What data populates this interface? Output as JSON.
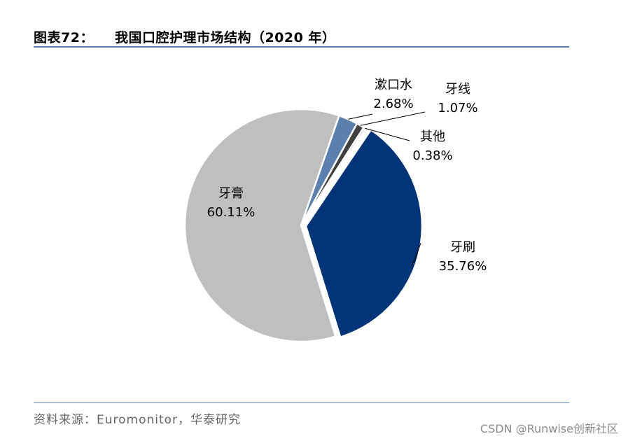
{
  "header": {
    "figure_no": "图表72：",
    "title": "我国口腔护理市场结构（2020 年）"
  },
  "footer": {
    "source": "资料来源：Euromonitor，华泰研究",
    "watermark": "CSDN @Runwise创新社区"
  },
  "chart_data": {
    "type": "pie",
    "title": "我国口腔护理市场结构（2020 年）",
    "slices": [
      {
        "name": "牙刷",
        "value": 35.76,
        "label": "35.76%",
        "color": "#003478"
      },
      {
        "name": "牙膏",
        "value": 60.11,
        "label": "60.11%",
        "color": "#bfbfbf"
      },
      {
        "name": "漱口水",
        "value": 2.68,
        "label": "2.68%",
        "color": "#5b80b0"
      },
      {
        "name": "牙线",
        "value": 1.07,
        "label": "1.07%",
        "color": "#404040"
      },
      {
        "name": "其他",
        "value": 0.38,
        "label": "0.38%",
        "color": "#d7e2f0"
      }
    ],
    "start_at": "between 其他 and 牙刷, clockwise",
    "legend": "none"
  }
}
